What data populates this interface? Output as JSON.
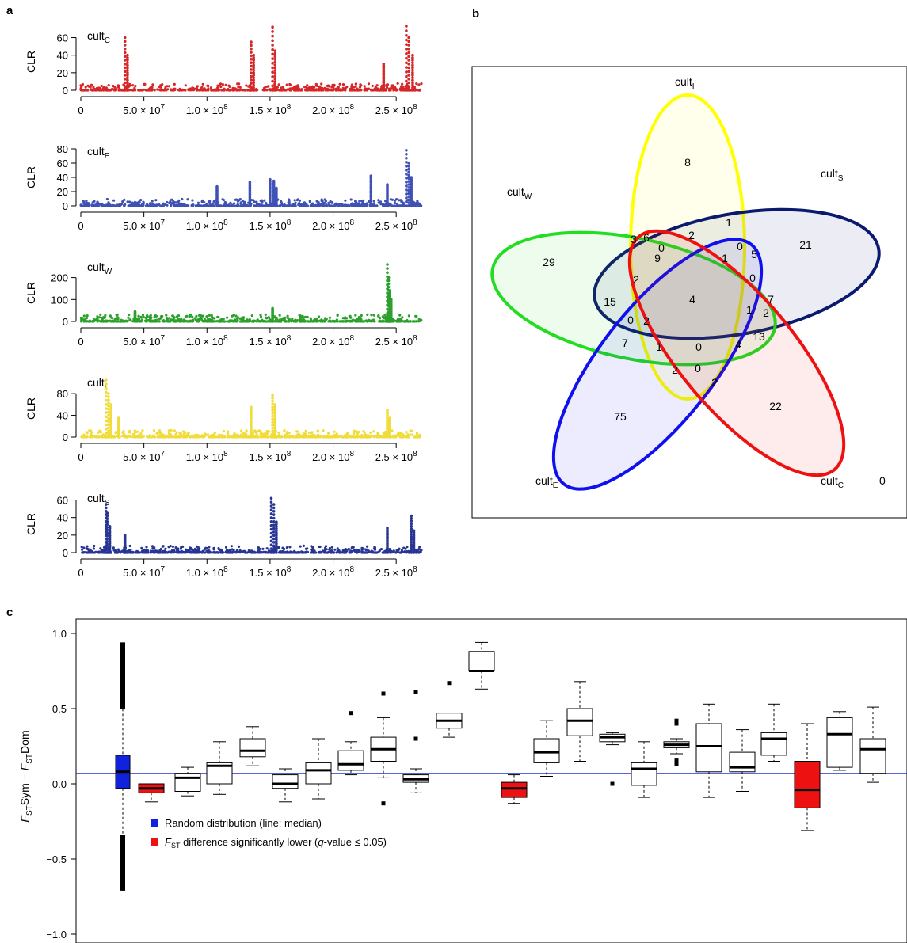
{
  "panels": {
    "a": "a",
    "b": "b",
    "c": "c"
  },
  "panel_a": {
    "y_label": "CLR",
    "x_ticks": [
      {
        "v": 0,
        "base": "0",
        "exp": ""
      },
      {
        "v": 50000000,
        "base": "5.0 × 10",
        "exp": "7"
      },
      {
        "v": 100000000,
        "base": "1.0 × 10",
        "exp": "8"
      },
      {
        "v": 150000000,
        "base": "1.5 × 10",
        "exp": "8"
      },
      {
        "v": 200000000,
        "base": "2.0 × 10",
        "exp": "8"
      },
      {
        "v": 250000000,
        "base": "2.5 × 10",
        "exp": "8"
      }
    ]
  },
  "venn": {
    "labels": [
      {
        "key": "I",
        "base": "cult",
        "sub": "I",
        "color": "#ffff00"
      },
      {
        "key": "S",
        "base": "cult",
        "sub": "S",
        "color": "#0a1a6e"
      },
      {
        "key": "W",
        "base": "cult",
        "sub": "W",
        "color": "#22dd22"
      },
      {
        "key": "E",
        "base": "cult",
        "sub": "E",
        "color": "#1010ee"
      },
      {
        "key": "C",
        "base": "cult",
        "sub": "C",
        "color": "#ee1111"
      }
    ],
    "outside_count": "0",
    "counts": [
      "8",
      "1",
      "0",
      "2",
      "21",
      "29",
      "3",
      "6",
      "9",
      "1",
      "0",
      "5",
      "0",
      "2",
      "4",
      "15",
      "7",
      "1",
      "2",
      "0",
      "2",
      "7",
      "1",
      "0",
      "4",
      "13",
      "2",
      "0",
      "2",
      "22",
      "75"
    ]
  },
  "legend": {
    "random": "Random distribution (line: median)",
    "sig_pre": "F",
    "sig_sub": "ST",
    "sig_mid": " difference significantly lower (",
    "sig_q": "q",
    "sig_post": "-value ≤ 0.05)"
  },
  "chart_data": [
    {
      "type": "scatter",
      "name": "cult_C",
      "label_base": "cult",
      "label_sub": "C",
      "color": "#d62728",
      "ylabel": "CLR",
      "xlim": [
        0,
        275000000
      ],
      "ylim": [
        0,
        65
      ],
      "y_ticks": [
        0,
        20,
        40,
        60
      ],
      "peaks": [
        [
          35000000,
          60
        ],
        [
          37000000,
          40
        ],
        [
          135000000,
          55
        ],
        [
          137000000,
          40
        ],
        [
          152000000,
          72
        ],
        [
          154000000,
          45
        ],
        [
          240000000,
          30
        ],
        [
          258000000,
          73
        ],
        [
          260000000,
          60
        ],
        [
          263000000,
          40
        ]
      ]
    },
    {
      "type": "scatter",
      "name": "cult_E",
      "label_base": "cult",
      "label_sub": "E",
      "color": "#3f51b5",
      "ylabel": "CLR",
      "xlim": [
        0,
        275000000
      ],
      "ylim": [
        0,
        80
      ],
      "y_ticks": [
        0,
        20,
        40,
        60,
        80
      ],
      "peaks": [
        [
          108000000,
          27
        ],
        [
          134000000,
          33
        ],
        [
          150000000,
          37
        ],
        [
          153000000,
          35
        ],
        [
          155000000,
          25
        ],
        [
          230000000,
          42
        ],
        [
          243000000,
          30
        ],
        [
          258000000,
          78
        ],
        [
          260000000,
          60
        ],
        [
          262000000,
          40
        ]
      ]
    },
    {
      "type": "scatter",
      "name": "cult_W",
      "label_base": "cult",
      "label_sub": "W",
      "color": "#2ca02c",
      "ylabel": "CLR",
      "xlim": [
        0,
        275000000
      ],
      "ylim": [
        0,
        260
      ],
      "y_ticks": [
        0,
        100,
        200
      ],
      "peaks": [
        [
          43000000,
          45
        ],
        [
          152000000,
          60
        ],
        [
          174000000,
          25
        ],
        [
          243000000,
          260
        ],
        [
          244000000,
          200
        ],
        [
          245000000,
          140
        ],
        [
          246000000,
          100
        ]
      ]
    },
    {
      "type": "scatter",
      "name": "cult_I",
      "label_base": "cult",
      "label_sub": "I",
      "color": "#f0dc3a",
      "ylabel": "CLR",
      "xlim": [
        0,
        275000000
      ],
      "ylim": [
        0,
        105
      ],
      "y_ticks": [
        0,
        40,
        80
      ],
      "peaks": [
        [
          20000000,
          105
        ],
        [
          22000000,
          80
        ],
        [
          24000000,
          60
        ],
        [
          30000000,
          35
        ],
        [
          135000000,
          55
        ],
        [
          152000000,
          77
        ],
        [
          154000000,
          60
        ],
        [
          243000000,
          50
        ],
        [
          245000000,
          35
        ]
      ]
    },
    {
      "type": "scatter",
      "name": "cult_S",
      "label_base": "cult",
      "label_sub": "S",
      "color": "#283593",
      "ylabel": "CLR",
      "xlim": [
        0,
        275000000
      ],
      "ylim": [
        0,
        65
      ],
      "y_ticks": [
        0,
        20,
        40,
        60
      ],
      "peaks": [
        [
          20000000,
          55
        ],
        [
          21000000,
          45
        ],
        [
          23000000,
          30
        ],
        [
          35000000,
          20
        ],
        [
          151000000,
          62
        ],
        [
          153000000,
          55
        ],
        [
          155000000,
          35
        ],
        [
          243000000,
          28
        ],
        [
          262000000,
          42
        ],
        [
          264000000,
          25
        ]
      ]
    },
    {
      "type": "box",
      "name": "FST difference",
      "ylabel_pre": "F",
      "ylabel_sub1": "ST",
      "ylabel_mid": "Sym − ",
      "ylabel_sub2": "ST",
      "ylabel_post": "Dom",
      "ylim": [
        -1.0,
        1.0
      ],
      "y_ticks": [
        {
          "v": 1.0,
          "t": "1.0"
        },
        {
          "v": 0.5,
          "t": "0.5"
        },
        {
          "v": 0.0,
          "t": "0.0"
        },
        {
          "v": -0.5,
          "t": "−0.5"
        },
        {
          "v": -1.0,
          "t": "−1.0"
        }
      ],
      "median_line": 0.07,
      "boxes": [
        {
          "kind": "random",
          "min": -0.71,
          "q1": -0.03,
          "med": 0.08,
          "q3": 0.19,
          "max": 0.94
        },
        {
          "kind": "sig",
          "min": -0.12,
          "q1": -0.06,
          "med": -0.03,
          "q3": 0.0,
          "max": 0.0
        },
        {
          "kind": "plain",
          "min": -0.08,
          "q1": -0.05,
          "med": 0.04,
          "q3": 0.07,
          "max": 0.11
        },
        {
          "kind": "plain",
          "min": -0.07,
          "q1": 0.0,
          "med": 0.12,
          "q3": 0.14,
          "max": 0.28
        },
        {
          "kind": "plain",
          "min": 0.12,
          "q1": 0.18,
          "med": 0.22,
          "q3": 0.3,
          "max": 0.38
        },
        {
          "kind": "plain",
          "min": -0.12,
          "q1": -0.03,
          "med": 0.0,
          "q3": 0.06,
          "max": 0.1
        },
        {
          "kind": "plain",
          "min": -0.1,
          "q1": 0.0,
          "med": 0.09,
          "q3": 0.14,
          "max": 0.3
        },
        {
          "kind": "plain",
          "min": 0.06,
          "q1": 0.09,
          "med": 0.13,
          "q3": 0.22,
          "max": 0.28,
          "outliers": [
            0.47
          ]
        },
        {
          "kind": "plain",
          "min": 0.04,
          "q1": 0.15,
          "med": 0.23,
          "q3": 0.31,
          "max": 0.44,
          "outliers": [
            0.6,
            -0.13
          ]
        },
        {
          "kind": "plain",
          "min": -0.06,
          "q1": 0.01,
          "med": 0.03,
          "q3": 0.06,
          "max": 0.1,
          "outliers": [
            0.61,
            0.3
          ]
        },
        {
          "kind": "plain",
          "min": 0.31,
          "q1": 0.37,
          "med": 0.42,
          "q3": 0.47,
          "max": 0.47,
          "outliers": [
            0.67
          ]
        },
        {
          "kind": "plain",
          "min": 0.63,
          "q1": 0.75,
          "med": 0.75,
          "q3": 0.88,
          "max": 0.94
        },
        {
          "kind": "sig",
          "min": -0.13,
          "q1": -0.09,
          "med": -0.03,
          "q3": 0.01,
          "max": 0.06
        },
        {
          "kind": "plain",
          "min": 0.05,
          "q1": 0.14,
          "med": 0.21,
          "q3": 0.3,
          "max": 0.42
        },
        {
          "kind": "plain",
          "min": 0.15,
          "q1": 0.32,
          "med": 0.42,
          "q3": 0.5,
          "max": 0.68
        },
        {
          "kind": "plain",
          "min": 0.26,
          "q1": 0.28,
          "med": 0.31,
          "q3": 0.33,
          "max": 0.34,
          "outliers": [
            0.0
          ]
        },
        {
          "kind": "plain",
          "min": -0.09,
          "q1": -0.01,
          "med": 0.1,
          "q3": 0.14,
          "max": 0.28
        },
        {
          "kind": "plain",
          "min": 0.2,
          "q1": 0.24,
          "med": 0.26,
          "q3": 0.28,
          "max": 0.3,
          "outliers": [
            0.42,
            0.4,
            0.16,
            0.13
          ]
        },
        {
          "kind": "plain",
          "min": -0.09,
          "q1": 0.08,
          "med": 0.25,
          "q3": 0.4,
          "max": 0.53
        },
        {
          "kind": "plain",
          "min": -0.05,
          "q1": 0.08,
          "med": 0.11,
          "q3": 0.21,
          "max": 0.36
        },
        {
          "kind": "plain",
          "min": 0.15,
          "q1": 0.19,
          "med": 0.3,
          "q3": 0.34,
          "max": 0.53
        },
        {
          "kind": "sig",
          "min": -0.31,
          "q1": -0.16,
          "med": -0.04,
          "q3": 0.15,
          "max": 0.4
        },
        {
          "kind": "plain",
          "min": 0.09,
          "q1": 0.11,
          "med": 0.33,
          "q3": 0.44,
          "max": 0.48
        },
        {
          "kind": "plain",
          "min": 0.01,
          "q1": 0.07,
          "med": 0.23,
          "q3": 0.3,
          "max": 0.51
        }
      ]
    }
  ]
}
